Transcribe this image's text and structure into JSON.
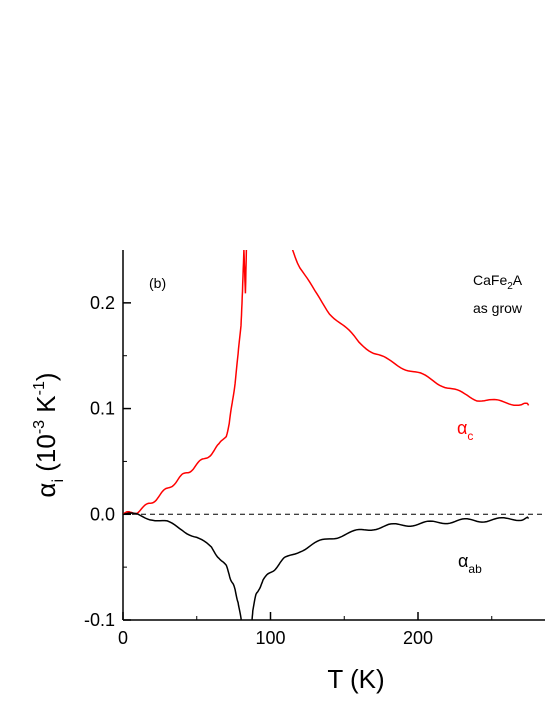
{
  "chart_data": {
    "type": "line",
    "panel_label": "(b)",
    "sample_label_line1": "CaFe",
    "sample_label_sub": "2",
    "sample_label_rest": "A",
    "sample_label_line2": "as grow",
    "xlabel": "T (K)",
    "ylabel_parts": {
      "symbol": "α",
      "sub": "i",
      "mid": " (10",
      "exp1": "-3",
      "unit": " K",
      "exp2": "-1",
      "end": ")"
    },
    "xlim": [
      0,
      275
    ],
    "ylim": [
      -0.1,
      0.25
    ],
    "xticks": [
      0,
      100,
      200
    ],
    "xtick_labels": [
      "0",
      "100",
      "200"
    ],
    "yticks": [
      -0.1,
      0.0,
      0.1,
      0.2
    ],
    "ytick_labels": [
      "-0.1",
      "0.0",
      "0.1",
      "0.2"
    ],
    "reference_line_y": 0.0,
    "series": [
      {
        "name": "α_c",
        "label_symbol": "α",
        "label_sub": "c",
        "color": "#ff0000",
        "x": [
          0,
          5,
          10,
          15,
          20,
          25,
          30,
          35,
          40,
          45,
          50,
          55,
          60,
          65,
          70,
          72,
          74,
          76,
          78,
          80,
          81,
          82,
          83,
          84,
          85,
          85.5
        ],
        "y": [
          0.0,
          0.001,
          0.003,
          0.007,
          0.012,
          0.018,
          0.024,
          0.03,
          0.036,
          0.041,
          0.047,
          0.052,
          0.058,
          0.065,
          0.075,
          0.085,
          0.105,
          0.125,
          0.15,
          0.18,
          0.21,
          0.25,
          0.21,
          0.27,
          0.3,
          0.3
        ]
      },
      {
        "name": "α_c high-T",
        "color": "#ff0000",
        "x": [
          115,
          120,
          130,
          140,
          150,
          160,
          170,
          180,
          190,
          200,
          210,
          220,
          230,
          240,
          250,
          260,
          270,
          275
        ],
        "y": [
          0.25,
          0.234,
          0.21,
          0.191,
          0.177,
          0.163,
          0.153,
          0.145,
          0.139,
          0.133,
          0.127,
          0.12,
          0.114,
          0.109,
          0.107,
          0.106,
          0.104,
          0.103
        ]
      },
      {
        "name": "α_ab",
        "label_symbol": "α",
        "label_sub": "ab",
        "color": "#000000",
        "x": [
          0,
          10,
          20,
          30,
          40,
          50,
          60,
          65,
          70,
          72,
          74,
          76,
          78,
          80,
          80.5
        ],
        "y": [
          0.0,
          -0.001,
          -0.004,
          -0.008,
          -0.014,
          -0.022,
          -0.032,
          -0.04,
          -0.05,
          -0.056,
          -0.065,
          -0.072,
          -0.082,
          -0.1,
          -0.105
        ]
      },
      {
        "name": "α_ab high-T",
        "color": "#000000",
        "x": [
          87,
          88,
          90,
          92,
          95,
          100,
          105,
          110,
          120,
          130,
          140,
          150,
          160,
          170,
          180,
          190,
          200,
          210,
          220,
          230,
          240,
          250,
          260,
          270,
          275
        ],
        "y": [
          -0.105,
          -0.09,
          -0.078,
          -0.07,
          -0.063,
          -0.055,
          -0.048,
          -0.042,
          -0.034,
          -0.028,
          -0.023,
          -0.019,
          -0.016,
          -0.013,
          -0.011,
          -0.01,
          -0.009,
          -0.008,
          -0.007,
          -0.006,
          -0.006,
          -0.005,
          -0.005,
          -0.004,
          -0.004
        ]
      }
    ]
  }
}
